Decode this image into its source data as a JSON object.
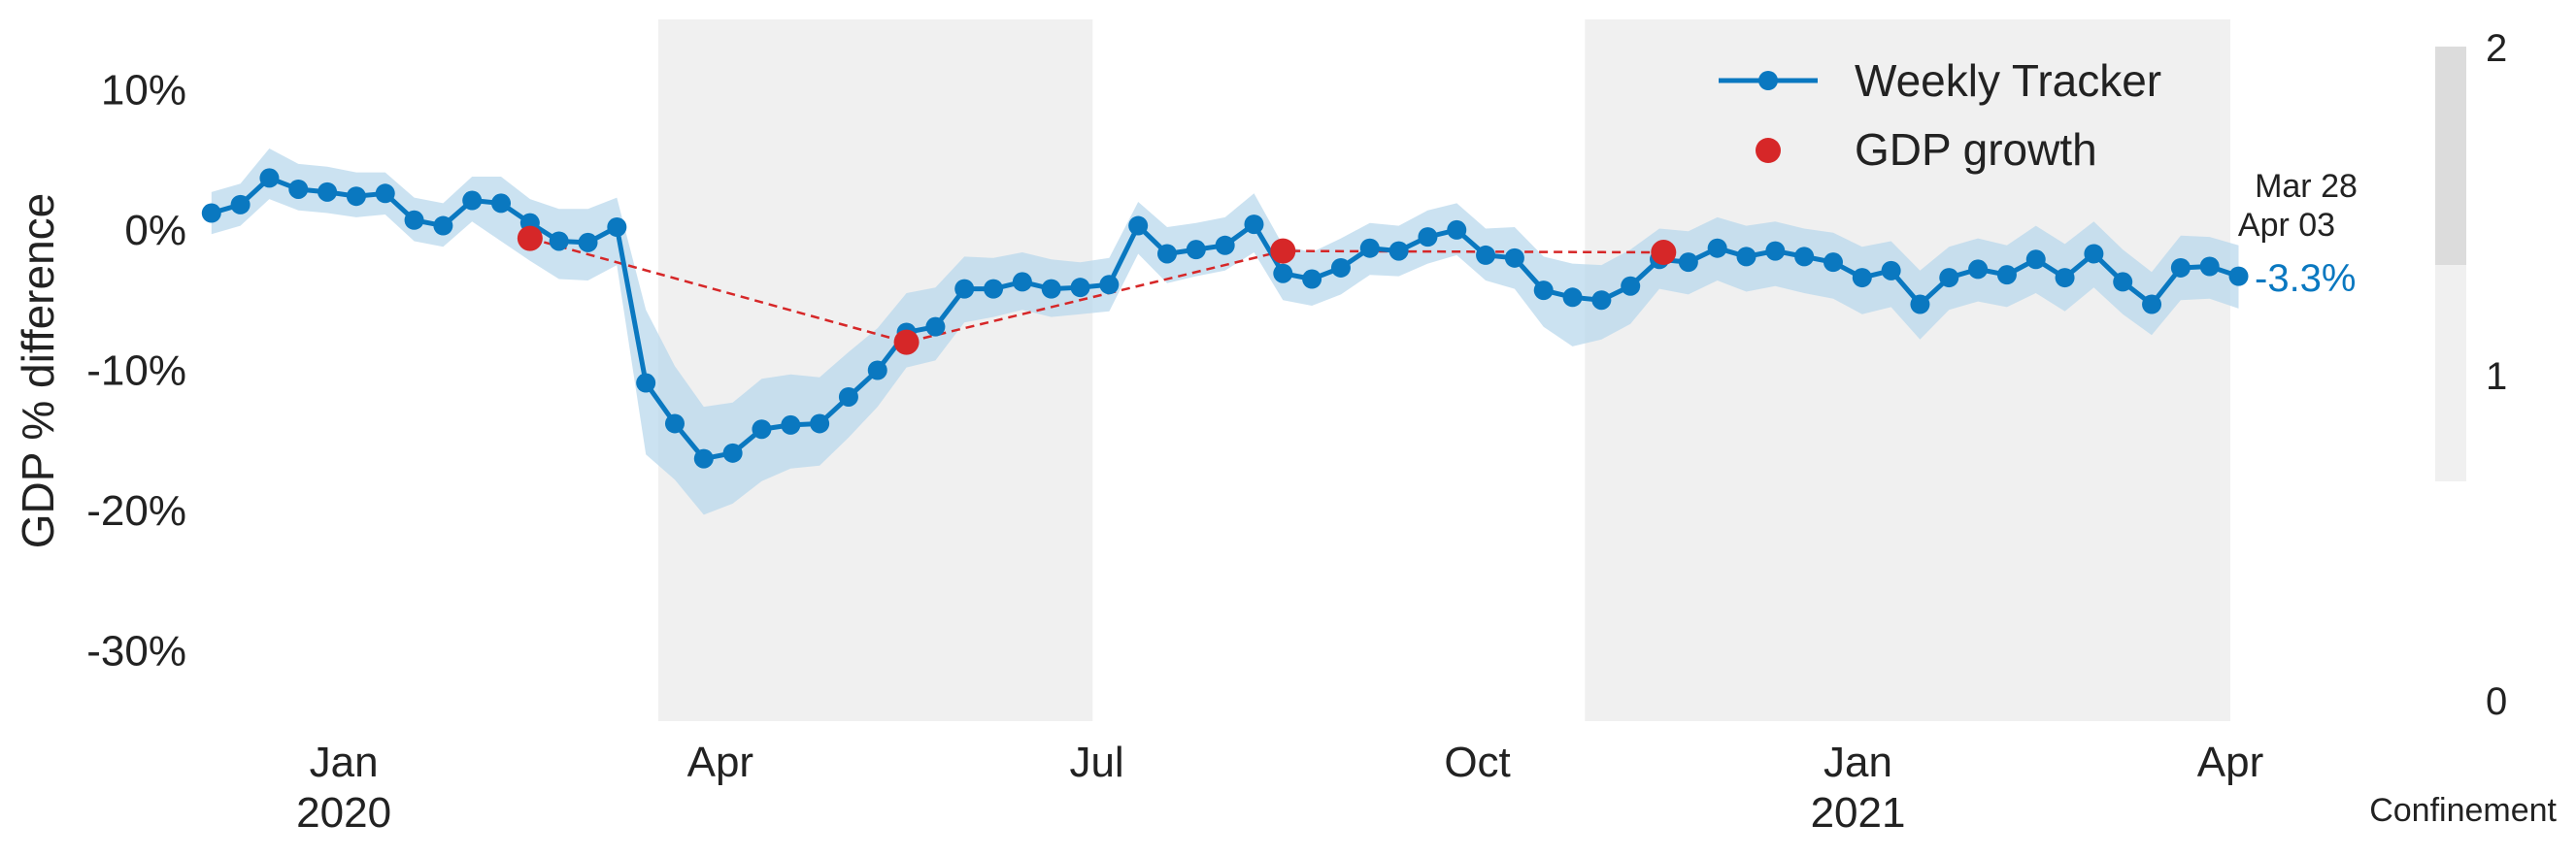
{
  "chart_data": {
    "type": "line",
    "ylabel": "GDP % difference",
    "ylim": [
      -35,
      15
    ],
    "yticks": [
      {
        "value": 10,
        "label": "10%"
      },
      {
        "value": 0,
        "label": "0%"
      },
      {
        "value": -10,
        "label": "-10%"
      },
      {
        "value": -20,
        "label": "-20%"
      },
      {
        "value": -30,
        "label": "-30%"
      }
    ],
    "xlim": [
      "2019-11-27",
      "2021-04-01"
    ],
    "xticks": [
      {
        "date": "2020-01-01",
        "label": "Jan",
        "sublabel": "2020"
      },
      {
        "date": "2020-04-01",
        "label": "Apr",
        "sublabel": ""
      },
      {
        "date": "2020-07-01",
        "label": "Jul",
        "sublabel": ""
      },
      {
        "date": "2020-10-01",
        "label": "Oct",
        "sublabel": ""
      },
      {
        "date": "2021-01-01",
        "label": "Jan",
        "sublabel": "2021"
      },
      {
        "date": "2021-04-01",
        "label": "Apr",
        "sublabel": ""
      }
    ],
    "grid": false,
    "legend_position": "top-right",
    "confinement_periods": [
      {
        "start": "2020-03-17",
        "end": "2020-06-30",
        "level": 1
      },
      {
        "start": "2020-10-27",
        "end": "2021-04-01",
        "level": 1
      }
    ],
    "series": [
      {
        "name": "Weekly Tracker",
        "color": "#0a78c0",
        "band_color": "#b9d8ec",
        "dates": [
          "2019-11-30",
          "2019-12-07",
          "2019-12-14",
          "2019-12-21",
          "2019-12-28",
          "2020-01-04",
          "2020-01-11",
          "2020-01-18",
          "2020-01-25",
          "2020-02-01",
          "2020-02-08",
          "2020-02-15",
          "2020-02-22",
          "2020-02-29",
          "2020-03-07",
          "2020-03-14",
          "2020-03-21",
          "2020-03-28",
          "2020-04-04",
          "2020-04-11",
          "2020-04-18",
          "2020-04-25",
          "2020-05-02",
          "2020-05-09",
          "2020-05-16",
          "2020-05-23",
          "2020-05-30",
          "2020-06-06",
          "2020-06-13",
          "2020-06-20",
          "2020-06-27",
          "2020-07-04",
          "2020-07-11",
          "2020-07-18",
          "2020-07-25",
          "2020-08-01",
          "2020-08-08",
          "2020-08-15",
          "2020-08-22",
          "2020-08-29",
          "2020-09-05",
          "2020-09-12",
          "2020-09-19",
          "2020-09-26",
          "2020-10-03",
          "2020-10-10",
          "2020-10-17",
          "2020-10-24",
          "2020-10-31",
          "2020-11-07",
          "2020-11-14",
          "2020-11-21",
          "2020-11-28",
          "2020-12-05",
          "2020-12-12",
          "2020-12-19",
          "2020-12-26",
          "2021-01-02",
          "2021-01-09",
          "2021-01-16",
          "2021-01-23",
          "2021-01-30",
          "2021-02-06",
          "2021-02-13",
          "2021-02-20",
          "2021-02-27",
          "2021-03-06",
          "2021-03-13",
          "2021-03-20",
          "2021-03-27",
          "2021-04-03"
        ],
        "values": [
          1.2,
          1.8,
          3.7,
          2.9,
          2.7,
          2.4,
          2.6,
          0.7,
          0.3,
          2.1,
          1.9,
          0.5,
          -0.8,
          -0.9,
          0.2,
          -10.9,
          -13.8,
          -16.3,
          -15.9,
          -14.2,
          -13.9,
          -13.8,
          -11.9,
          -10.0,
          -7.3,
          -6.9,
          -4.2,
          -4.2,
          -3.7,
          -4.2,
          -4.1,
          -3.9,
          0.3,
          -1.7,
          -1.4,
          -1.1,
          0.4,
          -3.1,
          -3.5,
          -2.7,
          -1.3,
          -1.5,
          -0.5,
          0.0,
          -1.8,
          -2.0,
          -4.3,
          -4.8,
          -5.0,
          -4.0,
          -2.1,
          -2.3,
          -1.3,
          -1.9,
          -1.5,
          -1.9,
          -2.3,
          -3.4,
          -2.9,
          -5.3,
          -3.4,
          -2.8,
          -3.2,
          -2.1,
          -3.4,
          -1.7,
          -3.7,
          -5.3,
          -2.7,
          -2.6,
          -3.3
        ],
        "lower": [
          -0.3,
          0.3,
          2.2,
          1.4,
          1.2,
          0.9,
          1.1,
          -0.8,
          -1.2,
          0.6,
          -0.8,
          -2.2,
          -3.5,
          -3.6,
          -2.5,
          -16.0,
          -17.8,
          -20.3,
          -19.5,
          -17.9,
          -17.0,
          -16.8,
          -14.8,
          -12.6,
          -9.8,
          -9.3,
          -6.6,
          -6.2,
          -5.7,
          -6.2,
          -6.0,
          -5.8,
          -1.7,
          -3.8,
          -3.3,
          -2.9,
          -1.6,
          -5.0,
          -5.4,
          -4.6,
          -3.2,
          -3.3,
          -2.4,
          -1.8,
          -3.6,
          -4.2,
          -6.9,
          -8.3,
          -7.8,
          -6.7,
          -4.2,
          -4.6,
          -3.6,
          -4.4,
          -4.0,
          -4.5,
          -4.9,
          -6.0,
          -5.5,
          -7.8,
          -5.7,
          -5.1,
          -5.5,
          -4.5,
          -5.8,
          -4.1,
          -6.0,
          -7.5,
          -5.0,
          -4.9,
          -5.6
        ],
        "upper": [
          2.7,
          3.3,
          5.8,
          4.7,
          4.5,
          4.1,
          4.1,
          2.3,
          1.9,
          3.8,
          3.8,
          2.2,
          1.5,
          1.5,
          2.3,
          -5.7,
          -9.7,
          -12.6,
          -12.3,
          -10.6,
          -10.3,
          -10.5,
          -8.7,
          -7.0,
          -4.5,
          -4.1,
          -1.9,
          -2.0,
          -1.6,
          -2.1,
          -2.3,
          -2.0,
          2.0,
          0.2,
          0.5,
          0.9,
          2.6,
          -1.1,
          -1.6,
          -0.6,
          0.5,
          0.3,
          1.4,
          1.9,
          0.1,
          0.2,
          -1.9,
          -2.4,
          -2.5,
          -1.4,
          0.1,
          -0.1,
          0.9,
          0.3,
          0.6,
          0.1,
          -0.2,
          -1.2,
          -0.8,
          -2.9,
          -1.2,
          -0.6,
          -1.1,
          0.3,
          -1.0,
          0.6,
          -1.4,
          -3.0,
          -0.4,
          -0.5,
          -1.1
        ]
      },
      {
        "name": "GDP growth",
        "color": "#d62728",
        "dates": [
          "2020-02-15",
          "2020-05-16",
          "2020-08-15",
          "2020-11-15"
        ],
        "values": [
          -0.6,
          -8.0,
          -1.5,
          -1.6
        ]
      }
    ],
    "last_point": {
      "label_week": "Mar 28",
      "label_week_end": "Apr 03",
      "value_label": "-3.3%"
    },
    "colorbar": {
      "label": "Confinement",
      "ticks": [
        {
          "value": 0,
          "label": "0"
        },
        {
          "value": 1,
          "label": "1"
        },
        {
          "value": 2,
          "label": "2"
        }
      ],
      "colors": {
        "0": "#ffffff",
        "1": "#f0f0f0",
        "2": "#dcdcdc"
      }
    }
  }
}
